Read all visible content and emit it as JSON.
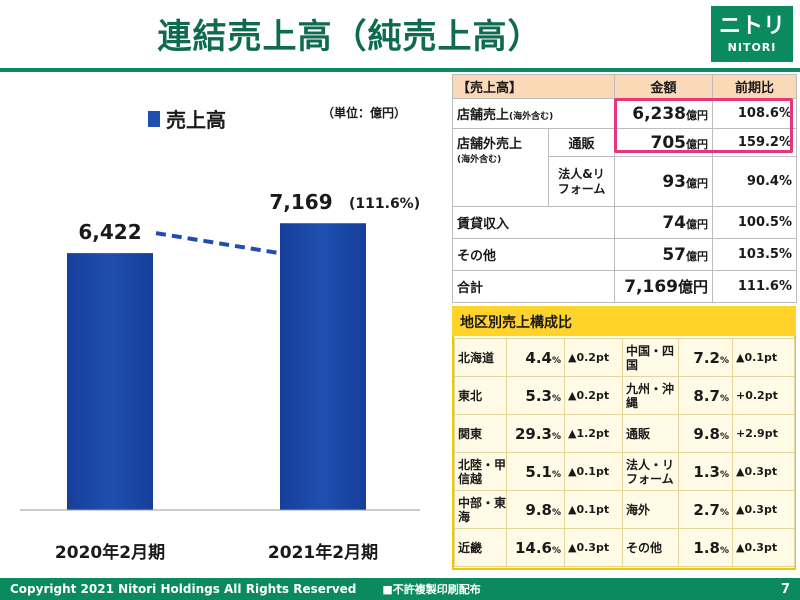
{
  "title": "連結売上高（純売上高）",
  "logo": {
    "main": "ニトリ",
    "sub": "NITORI"
  },
  "chart_data": {
    "type": "bar",
    "categories": [
      "2020年2月期",
      "2021年2月期"
    ],
    "series": [
      {
        "name": "売上高",
        "values": [
          6422,
          7169
        ]
      }
    ],
    "data_labels": [
      "6,422",
      "7,169"
    ],
    "annotation": "(111.6%)",
    "unit_label": "（単位：億円）",
    "ylim": [
      0,
      8000
    ],
    "color": "#1e4fb0",
    "trend_line": "dashed"
  },
  "sales_table": {
    "headers": [
      "【売上高】",
      "金額",
      "前期比"
    ],
    "rows": [
      {
        "label": "店舗売上",
        "sublabel": "(海外含む)",
        "amount": "6,238",
        "unit": "億円",
        "ratio": "108.6%"
      },
      {
        "label": "店舗外売上",
        "sublabel": "(海外含む)",
        "channel": "通販",
        "amount": "705",
        "unit": "億円",
        "ratio": "159.2%"
      },
      {
        "channel": "法人&リフォーム",
        "amount": "93",
        "unit": "億円",
        "ratio": "90.4%"
      },
      {
        "label": "賃貸収入",
        "amount": "74",
        "unit": "億円",
        "ratio": "100.5%"
      },
      {
        "label": "その他",
        "amount": "57",
        "unit": "億円",
        "ratio": "103.5%"
      },
      {
        "label": "合計",
        "amount": "7,169",
        "unit": "億円",
        "ratio": "111.6%"
      }
    ]
  },
  "region_table": {
    "title": "地区別売上構成比",
    "rows": [
      {
        "l_name": "北海道",
        "l_share": "4.4",
        "l_chg": "▲0.2pt",
        "r_name": "中国・四国",
        "r_share": "7.2",
        "r_chg": "▲0.1pt"
      },
      {
        "l_name": "東北",
        "l_share": "5.3",
        "l_chg": "▲0.2pt",
        "r_name": "九州・沖縄",
        "r_share": "8.7",
        "r_chg": "+0.2pt"
      },
      {
        "l_name": "関東",
        "l_share": "29.3",
        "l_chg": "▲1.2pt",
        "r_name": "通販",
        "r_share": "9.8",
        "r_chg": "+2.9pt"
      },
      {
        "l_name": "北陸・甲信越",
        "l_share": "5.1",
        "l_chg": "▲0.1pt",
        "r_name": "法人・リフォーム",
        "r_share": "1.3",
        "r_chg": "▲0.3pt"
      },
      {
        "l_name": "中部・東海",
        "l_share": "9.8",
        "l_chg": "▲0.1pt",
        "r_name": "海外",
        "r_share": "2.7",
        "r_chg": "▲0.3pt"
      },
      {
        "l_name": "近畿",
        "l_share": "14.6",
        "l_chg": "▲0.3pt",
        "r_name": "その他",
        "r_share": "1.8",
        "r_chg": "▲0.3pt"
      }
    ],
    "unit": "%"
  },
  "footer": {
    "copyright": "Copyright 2021 Nitori Holdings All Rights Reserved",
    "notice": "■不許複製印刷配布",
    "page": "7"
  }
}
